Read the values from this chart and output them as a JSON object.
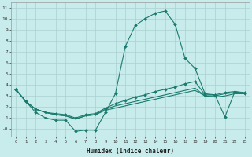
{
  "title": "",
  "xlabel": "Humidex (Indice chaleur)",
  "background_color": "#c8ecec",
  "grid_color": "#aad0d0",
  "line_color": "#1a7a6e",
  "xlim": [
    -0.5,
    23.5
  ],
  "ylim": [
    -0.7,
    11.5
  ],
  "xticks": [
    0,
    1,
    2,
    3,
    4,
    5,
    6,
    7,
    8,
    9,
    10,
    11,
    12,
    13,
    14,
    15,
    16,
    17,
    18,
    19,
    20,
    21,
    22,
    23
  ],
  "yticks": [
    0,
    1,
    2,
    3,
    4,
    5,
    6,
    7,
    8,
    9,
    10,
    11
  ],
  "ytick_labels": [
    "-0",
    "1",
    "2",
    "3",
    "4",
    "5",
    "6",
    "7",
    "8",
    "9",
    "10",
    "11"
  ],
  "curve1_x": [
    0,
    1,
    2,
    3,
    4,
    5,
    6,
    7,
    8,
    9,
    10,
    11,
    12,
    13,
    14,
    15,
    16,
    17,
    18,
    19,
    20,
    21,
    22,
    23
  ],
  "curve1_y": [
    3.6,
    2.5,
    1.5,
    1.0,
    0.8,
    0.8,
    -0.2,
    -0.1,
    -0.1,
    1.5,
    3.2,
    7.5,
    9.4,
    10.0,
    10.5,
    10.7,
    9.5,
    6.4,
    5.5,
    3.2,
    3.1,
    1.1,
    3.4,
    3.2
  ],
  "curve2_x": [
    0,
    1,
    2,
    3,
    4,
    5,
    6,
    7,
    8,
    9,
    10,
    11,
    12,
    13,
    14,
    15,
    16,
    17,
    18,
    19,
    20,
    21,
    22,
    23
  ],
  "curve2_y": [
    3.6,
    2.5,
    1.8,
    1.5,
    1.4,
    1.3,
    1.0,
    1.3,
    1.4,
    1.9,
    2.3,
    2.6,
    2.9,
    3.1,
    3.4,
    3.6,
    3.8,
    4.1,
    4.3,
    3.1,
    3.1,
    3.3,
    3.4,
    3.3
  ],
  "curve3_x": [
    0,
    1,
    2,
    3,
    4,
    5,
    6,
    7,
    8,
    9,
    10,
    11,
    12,
    13,
    14,
    15,
    16,
    17,
    18,
    19,
    20,
    21,
    22,
    23
  ],
  "curve3_y": [
    3.6,
    2.5,
    1.8,
    1.5,
    1.3,
    1.2,
    0.9,
    1.2,
    1.3,
    1.8,
    2.1,
    2.3,
    2.5,
    2.7,
    2.9,
    3.1,
    3.3,
    3.5,
    3.7,
    3.0,
    3.0,
    3.2,
    3.3,
    3.2
  ],
  "curve4_x": [
    0,
    1,
    2,
    3,
    4,
    5,
    6,
    7,
    8,
    9,
    10,
    11,
    12,
    13,
    14,
    15,
    16,
    17,
    18,
    19,
    20,
    21,
    22,
    23
  ],
  "curve4_y": [
    3.6,
    2.5,
    1.8,
    1.5,
    1.3,
    1.2,
    0.9,
    1.2,
    1.3,
    1.7,
    1.9,
    2.1,
    2.3,
    2.5,
    2.7,
    2.9,
    3.1,
    3.3,
    3.5,
    3.0,
    2.9,
    3.0,
    3.2,
    3.2
  ]
}
